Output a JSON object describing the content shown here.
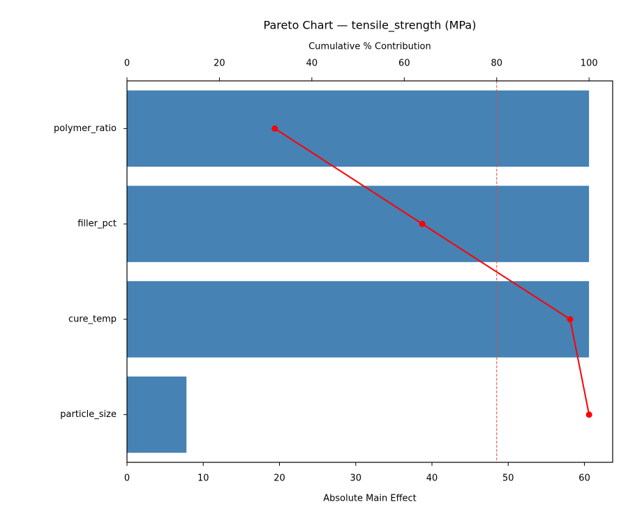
{
  "chart_data": {
    "type": "pareto",
    "title": "Pareto Chart — tensile_strength (MPa)",
    "xlabel": "Absolute Main Effect",
    "x2label": "Cumulative % Contribution",
    "categories": [
      "polymer_ratio",
      "filler_pct",
      "cure_temp",
      "particle_size"
    ],
    "values": [
      60.6,
      60.6,
      60.6,
      7.8
    ],
    "color": "#4682b4",
    "cumulative": [
      32.0,
      63.9,
      95.9,
      100
    ],
    "cumulative_color": "#ff0000",
    "threshold": 80,
    "threshold_color": "#e74c3c",
    "xlim": [
      0,
      63.7
    ],
    "xticks": [
      0,
      10,
      20,
      30,
      40,
      50,
      60
    ],
    "x2lim": [
      0,
      105.1
    ],
    "x2ticks": [
      0,
      20,
      40,
      60,
      80,
      100
    ]
  }
}
